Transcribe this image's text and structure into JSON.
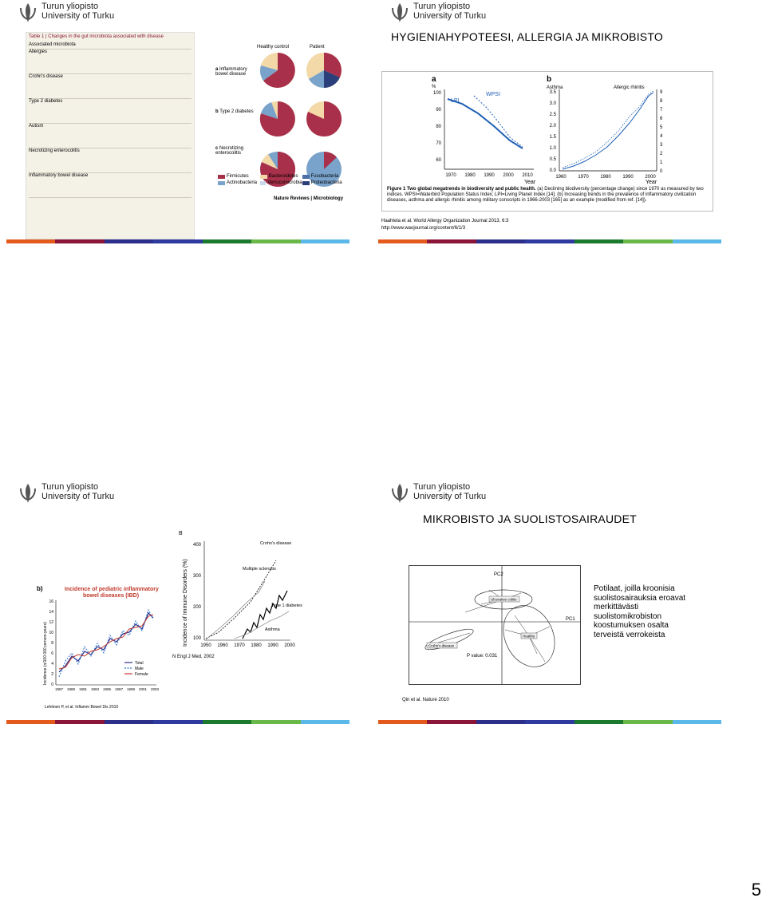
{
  "university": {
    "line1": "Turun yliopisto",
    "line2": "University of Turku"
  },
  "stripe_colors": [
    "#e35a1c",
    "#8a1538",
    "#2b2f8a",
    "#2e3a9e",
    "#1b7a2e",
    "#6ab84a",
    "#5bb8e8"
  ],
  "slide1": {
    "table_title": "Table 1 | Changes in the gut microbiota associated with disease",
    "table_lines": [
      "Associated microbiota",
      "Allergies",
      "Crohn's disease",
      "Type 2 diabetes",
      "Autism",
      "Necrotizing enterocolitis",
      "Inflammatory bowel disease"
    ],
    "pie_headers": {
      "healthy": "Healthy control",
      "patient": "Patient"
    },
    "rows": [
      {
        "label_a": "a",
        "label": "Inflammatory bowel disease"
      },
      {
        "label_a": "b",
        "label": "Type 2 diabetes"
      },
      {
        "label_a": "c",
        "label": "Necrotizing enterocolitis"
      }
    ],
    "legend": [
      "Firmicutes",
      "Bacteroidetes",
      "Fusobacteria",
      "Actinobacteria",
      "Verrucomicrobia",
      "Proteobacteria"
    ],
    "legend_colors": [
      "#a8304a",
      "#f3d9a8",
      "#4d6fa8",
      "#7aa3cc",
      "#c9d8ea",
      "#2b3f7a"
    ],
    "source": "Nature Reviews | Microbiology"
  },
  "slide2": {
    "title": "HYGIENIAHYPOTEESI, ALLERGIA JA MIKROBISTO",
    "panel_a": "a",
    "panel_b": "b",
    "a_unit": "%",
    "a_labels": [
      "LPI",
      "WPSI"
    ],
    "a_yticks": [
      "100",
      "90",
      "80",
      "70",
      "60"
    ],
    "a_xticks": [
      "1970",
      "1980",
      "1990",
      "2000",
      "2010"
    ],
    "a_xlabel": "Year",
    "b_left": "Asthma",
    "b_right": "Allergic rhinitis",
    "b_yticks_left": [
      "3.5",
      "3.0",
      "2.5",
      "2.0",
      "1.5",
      "1.0",
      "0.5",
      "0.0"
    ],
    "b_yticks_right": [
      "9",
      "8",
      "7",
      "6",
      "5",
      "4",
      "3",
      "2",
      "1",
      "0"
    ],
    "b_xticks": [
      "1960",
      "1970",
      "1980",
      "1990",
      "2000"
    ],
    "b_xlabel": "Year",
    "figure_caption_bold": "Figure 1 Two global megatrends in biodiversity and public health.",
    "figure_caption": "(a) Declining biodiversity (percentage change) since 1970 as measured by two indices. WPSI=Waterbird Population Status Index; LPI=Living Planet Index [14]. (b) Increasing trends in the prevalence of inflammatory civilization diseases, asthma and allergic rhinitis among military conscripts in 1966-2003 [165] as an example (modified from ref. [14]).",
    "citation": "Haahtela et al. World Allergy Organization Journal 2013, 6:3",
    "url": "http://www.waojournal.org/content/6/1/3"
  },
  "slide3": {
    "b_label": "b)",
    "ibd_title1": "Incidence of pediatric inflammatory",
    "ibd_title2": "bowel diseases (IBD)",
    "ibd_ylabel": "Incidence (n/100 000 person-years)",
    "ibd_yticks": [
      "16",
      "14",
      "12",
      "10",
      "8",
      "6",
      "4",
      "2",
      "0"
    ],
    "ibd_xticks": [
      "1987",
      "1989",
      "1991",
      "1993",
      "1995",
      "1997",
      "1999",
      "2001",
      "2003"
    ],
    "ibd_legend": [
      "Total",
      "Male",
      "Female"
    ],
    "ibd_source": "Lehtinen P, et al. Inflamm Bowel Dis 2010",
    "B_label": "B",
    "imm_ylabel": "Incidence of Immune Disorders (%)",
    "imm_yticks": [
      "400",
      "300",
      "200",
      "100"
    ],
    "imm_xticks": [
      "1950",
      "1960",
      "1970",
      "1980",
      "1990",
      "2000"
    ],
    "imm_series": [
      "Crohn's disease",
      "Multiple sclerosis",
      "Type 1 diabetes",
      "Asthma"
    ],
    "imm_source": "N Engl J Med, 2002"
  },
  "slide4": {
    "title": "MIKROBISTO JA SUOLISTOSAIRAUDET",
    "pc2": "PC2",
    "pc1": "PC1",
    "groups": [
      "Ulcerative colitis",
      "Crohn's disease",
      "Healthy"
    ],
    "pvalue": "P value: 0.031",
    "text": [
      "Potilaat, joilla kroonisia",
      "suolistosairauksia eroavat",
      "merkittävästi",
      "suolistomikrobiston",
      "koostumuksen osalta",
      "terveistä verrokeista"
    ],
    "source": "Qin et al. Nature 2010"
  },
  "page_number": "5"
}
